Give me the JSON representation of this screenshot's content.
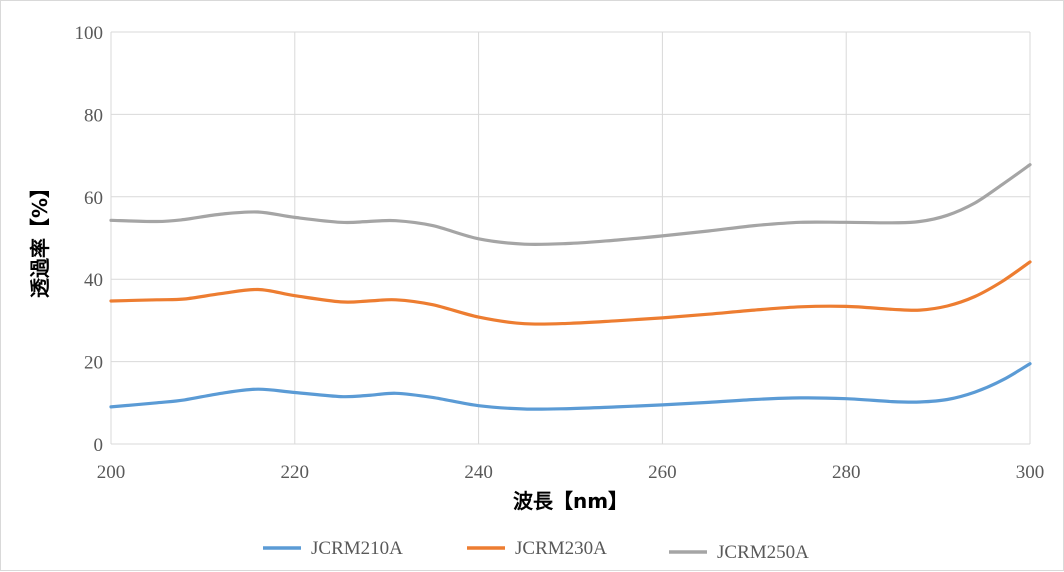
{
  "chart_data": {
    "type": "line",
    "xlabel": "波長【nm】",
    "ylabel": "透過率【%】",
    "xlim": [
      200,
      300
    ],
    "ylim": [
      0,
      100
    ],
    "x_ticks": [
      "200",
      "220",
      "240",
      "260",
      "280",
      "300"
    ],
    "y_ticks": [
      "0",
      "20",
      "40",
      "60",
      "80",
      "100"
    ],
    "grid": true,
    "legend_position": "bottom",
    "x": [
      200,
      205,
      208,
      212,
      216,
      220,
      225,
      228,
      231,
      235,
      240,
      245,
      250,
      255,
      260,
      265,
      270,
      275,
      280,
      285,
      288,
      291,
      294,
      297,
      300
    ],
    "series": [
      {
        "name": "JCRM210A",
        "color": "#5b9bd5",
        "values": [
          9.0,
          10.0,
          10.7,
          12.3,
          13.3,
          12.5,
          11.5,
          11.8,
          12.3,
          11.3,
          9.3,
          8.5,
          8.6,
          9.0,
          9.5,
          10.1,
          10.8,
          11.2,
          11.0,
          10.3,
          10.2,
          10.8,
          12.6,
          15.5,
          19.5
        ]
      },
      {
        "name": "JCRM230A",
        "color": "#ed7d31",
        "values": [
          34.7,
          35.0,
          35.2,
          36.5,
          37.5,
          36.0,
          34.5,
          34.7,
          35.0,
          33.8,
          30.8,
          29.2,
          29.3,
          29.9,
          30.6,
          31.5,
          32.5,
          33.3,
          33.4,
          32.7,
          32.5,
          33.5,
          35.8,
          39.5,
          44.2
        ]
      },
      {
        "name": "JCRM250A",
        "color": "#a5a5a5",
        "values": [
          54.3,
          54.0,
          54.5,
          55.8,
          56.3,
          55.0,
          53.8,
          54.0,
          54.2,
          53.0,
          49.8,
          48.5,
          48.7,
          49.5,
          50.5,
          51.7,
          53.0,
          53.8,
          53.8,
          53.7,
          54.0,
          55.5,
          58.5,
          63.0,
          67.8
        ]
      }
    ]
  }
}
